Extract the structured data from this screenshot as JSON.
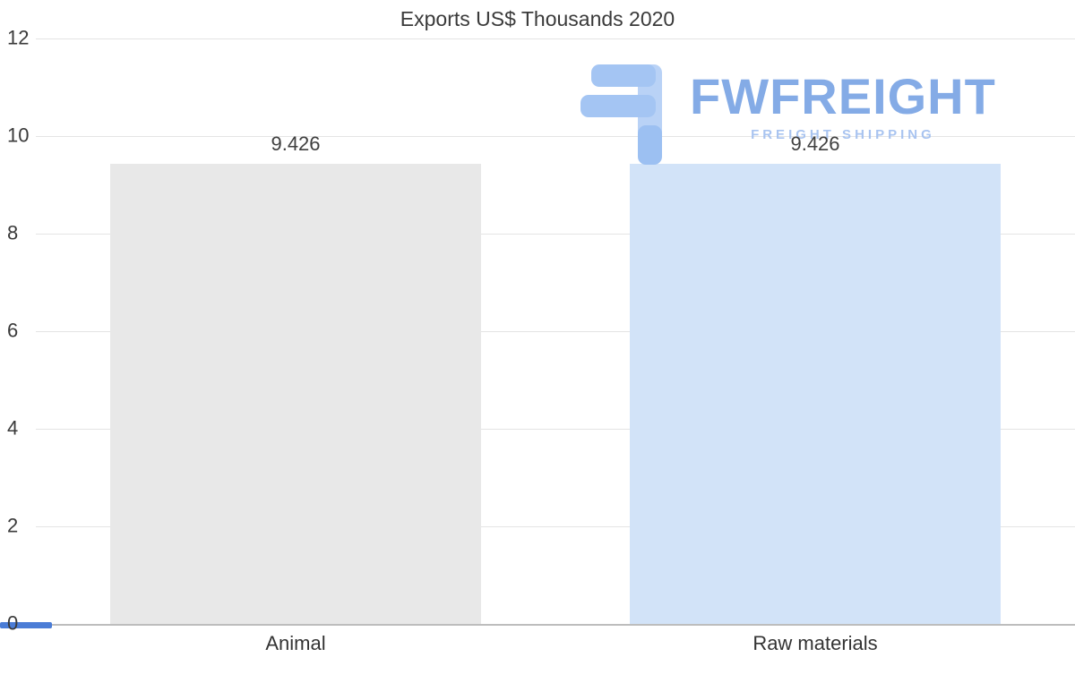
{
  "title": "Exports US$ Thousands 2020",
  "watermark": {
    "brand": "FWFREIGHT",
    "tagline": "FREIGHT SHIPPING",
    "icon": "fwfreight-logo-icon",
    "brand_color": "#6f9ce2",
    "tagline_color": "#a0beee"
  },
  "chart_data": {
    "type": "bar",
    "title": "Exports US$ Thousands 2020",
    "categories": [
      "Animal",
      "Raw materials"
    ],
    "values": [
      9.426,
      9.426
    ],
    "value_labels": [
      "9.426",
      "9.426"
    ],
    "ylim": [
      0,
      12
    ],
    "yticks": [
      0,
      2,
      4,
      6,
      8,
      10,
      12
    ],
    "grid": true,
    "legend": "none",
    "bar_colors": [
      "#e8e8e8",
      "#d2e3f8"
    ],
    "xlabel": "",
    "ylabel": ""
  },
  "colors": {
    "gridline": "#e4e4e4",
    "baseline": "#bdbdbd",
    "baseline_accent": "#4a7cd6",
    "text": "#3a3a3a",
    "background": "#ffffff"
  }
}
